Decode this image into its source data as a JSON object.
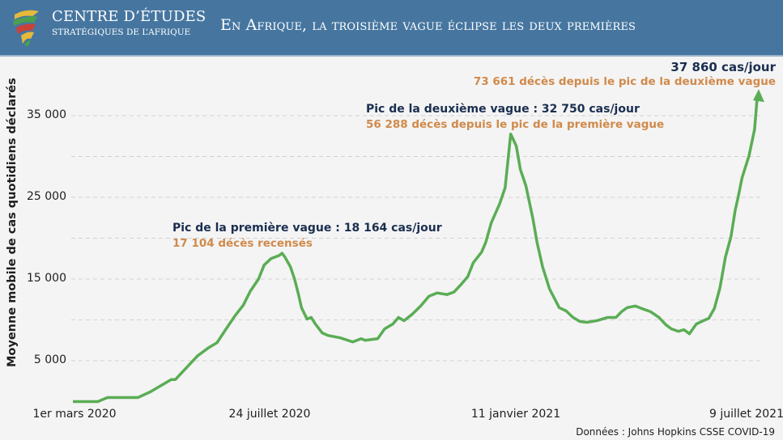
{
  "header": {
    "org_line1": "CENTRE D’ÉTUDES",
    "org_line2": "STRATÉGIQUES DE L’AFRIQUE",
    "title": "En Afrique, la troisième vague éclipse les deux premières",
    "background_color": "#4676a0"
  },
  "chart_data": {
    "type": "line",
    "title": "En Afrique, la troisième vague éclipse les deux premières",
    "ylabel": "Moyenne mobile de cas quotidiens déclarés",
    "xlabel": "",
    "ylim": [
      0,
      37860
    ],
    "y_ticks": [
      "35 000",
      "25 000",
      "15 000",
      "5 000"
    ],
    "y_gridlines": [
      5000,
      10000,
      15000,
      20000,
      25000,
      30000,
      35000
    ],
    "grid": true,
    "x_ticks": [
      "1er mars 2020",
      "24 juillet 2020",
      "11 janvier 2021",
      "9 juillet 2021"
    ],
    "line_color": "#5aad55",
    "series": [
      {
        "x": [
          "2020-03-01",
          "2020-03-19",
          "2020-03-26",
          "2020-04-17",
          "2020-04-26",
          "2020-05-11",
          "2020-05-14",
          "2020-05-30",
          "2020-06-07",
          "2020-06-13",
          "2020-06-20",
          "2020-06-26",
          "2020-07-02",
          "2020-07-07",
          "2020-07-13",
          "2020-07-17",
          "2020-07-22",
          "2020-07-28",
          "2020-07-30",
          "2020-08-01",
          "2020-08-05",
          "2020-08-08",
          "2020-08-11",
          "2020-08-13",
          "2020-08-17",
          "2020-08-20",
          "2020-08-23",
          "2020-08-28",
          "2020-09-01",
          "2020-09-10",
          "2020-09-19",
          "2020-09-25",
          "2020-09-28",
          "2020-10-07",
          "2020-10-12",
          "2020-10-18",
          "2020-10-22",
          "2020-10-26",
          "2020-11-01",
          "2020-11-07",
          "2020-11-13",
          "2020-11-19",
          "2020-11-26",
          "2020-12-01",
          "2020-12-06",
          "2020-12-11",
          "2020-12-15",
          "2020-12-21",
          "2020-12-24",
          "2020-12-28",
          "2021-01-03",
          "2021-01-07",
          "2021-01-11",
          "2021-01-15",
          "2021-01-18",
          "2021-01-22",
          "2021-01-27",
          "2021-01-30",
          "2021-02-03",
          "2021-02-08",
          "2021-02-15",
          "2021-02-20",
          "2021-02-25",
          "2021-03-02",
          "2021-03-07",
          "2021-03-14",
          "2021-03-22",
          "2021-03-28",
          "2021-04-01",
          "2021-04-05",
          "2021-04-11",
          "2021-04-17",
          "2021-04-22",
          "2021-04-28",
          "2021-05-03",
          "2021-05-07",
          "2021-05-12",
          "2021-05-16",
          "2021-05-20",
          "2021-05-25",
          "2021-05-30",
          "2021-06-03",
          "2021-06-07",
          "2021-06-11",
          "2021-06-15",
          "2021-06-19",
          "2021-06-22",
          "2021-06-24",
          "2021-06-27",
          "2021-07-02",
          "2021-07-06",
          "2021-07-09"
        ],
        "y": [
          0,
          0,
          500,
          500,
          1200,
          2700,
          2700,
          5600,
          6600,
          7200,
          9000,
          10500,
          11800,
          13500,
          15000,
          16700,
          17500,
          17900,
          18164,
          17700,
          16500,
          15000,
          13000,
          11500,
          10100,
          10300,
          9500,
          8400,
          8100,
          7800,
          7300,
          7700,
          7500,
          7700,
          8900,
          9500,
          10300,
          9900,
          10700,
          11700,
          12900,
          13300,
          13100,
          13400,
          14300,
          15300,
          17000,
          18300,
          19500,
          21900,
          24200,
          26200,
          32750,
          31300,
          28400,
          26400,
          22400,
          19500,
          16500,
          13800,
          11500,
          11100,
          10300,
          9800,
          9700,
          9900,
          10300,
          10300,
          11000,
          11500,
          11700,
          11300,
          11000,
          10300,
          9400,
          8900,
          8600,
          8800,
          8300,
          9500,
          9900,
          10200,
          11400,
          13900,
          17700,
          20200,
          23400,
          24900,
          27400,
          30100,
          33300,
          37860
        ]
      }
    ],
    "annotations": {
      "first_peak": {
        "label": "Pic de la première vague : 18 164 cas/jour",
        "detail": "17 104 décès recensés"
      },
      "second_peak": {
        "label": "Pic de la deuxième vague : 32 750 cas/jour",
        "detail": "56 288 décès depuis le pic de la première vague"
      },
      "latest": {
        "label": "37 860 cas/jour",
        "detail": "73 661 décès depuis le pic de la deuxième vague"
      }
    },
    "source": "Données : Johns Hopkins CSSE COVID-19"
  }
}
